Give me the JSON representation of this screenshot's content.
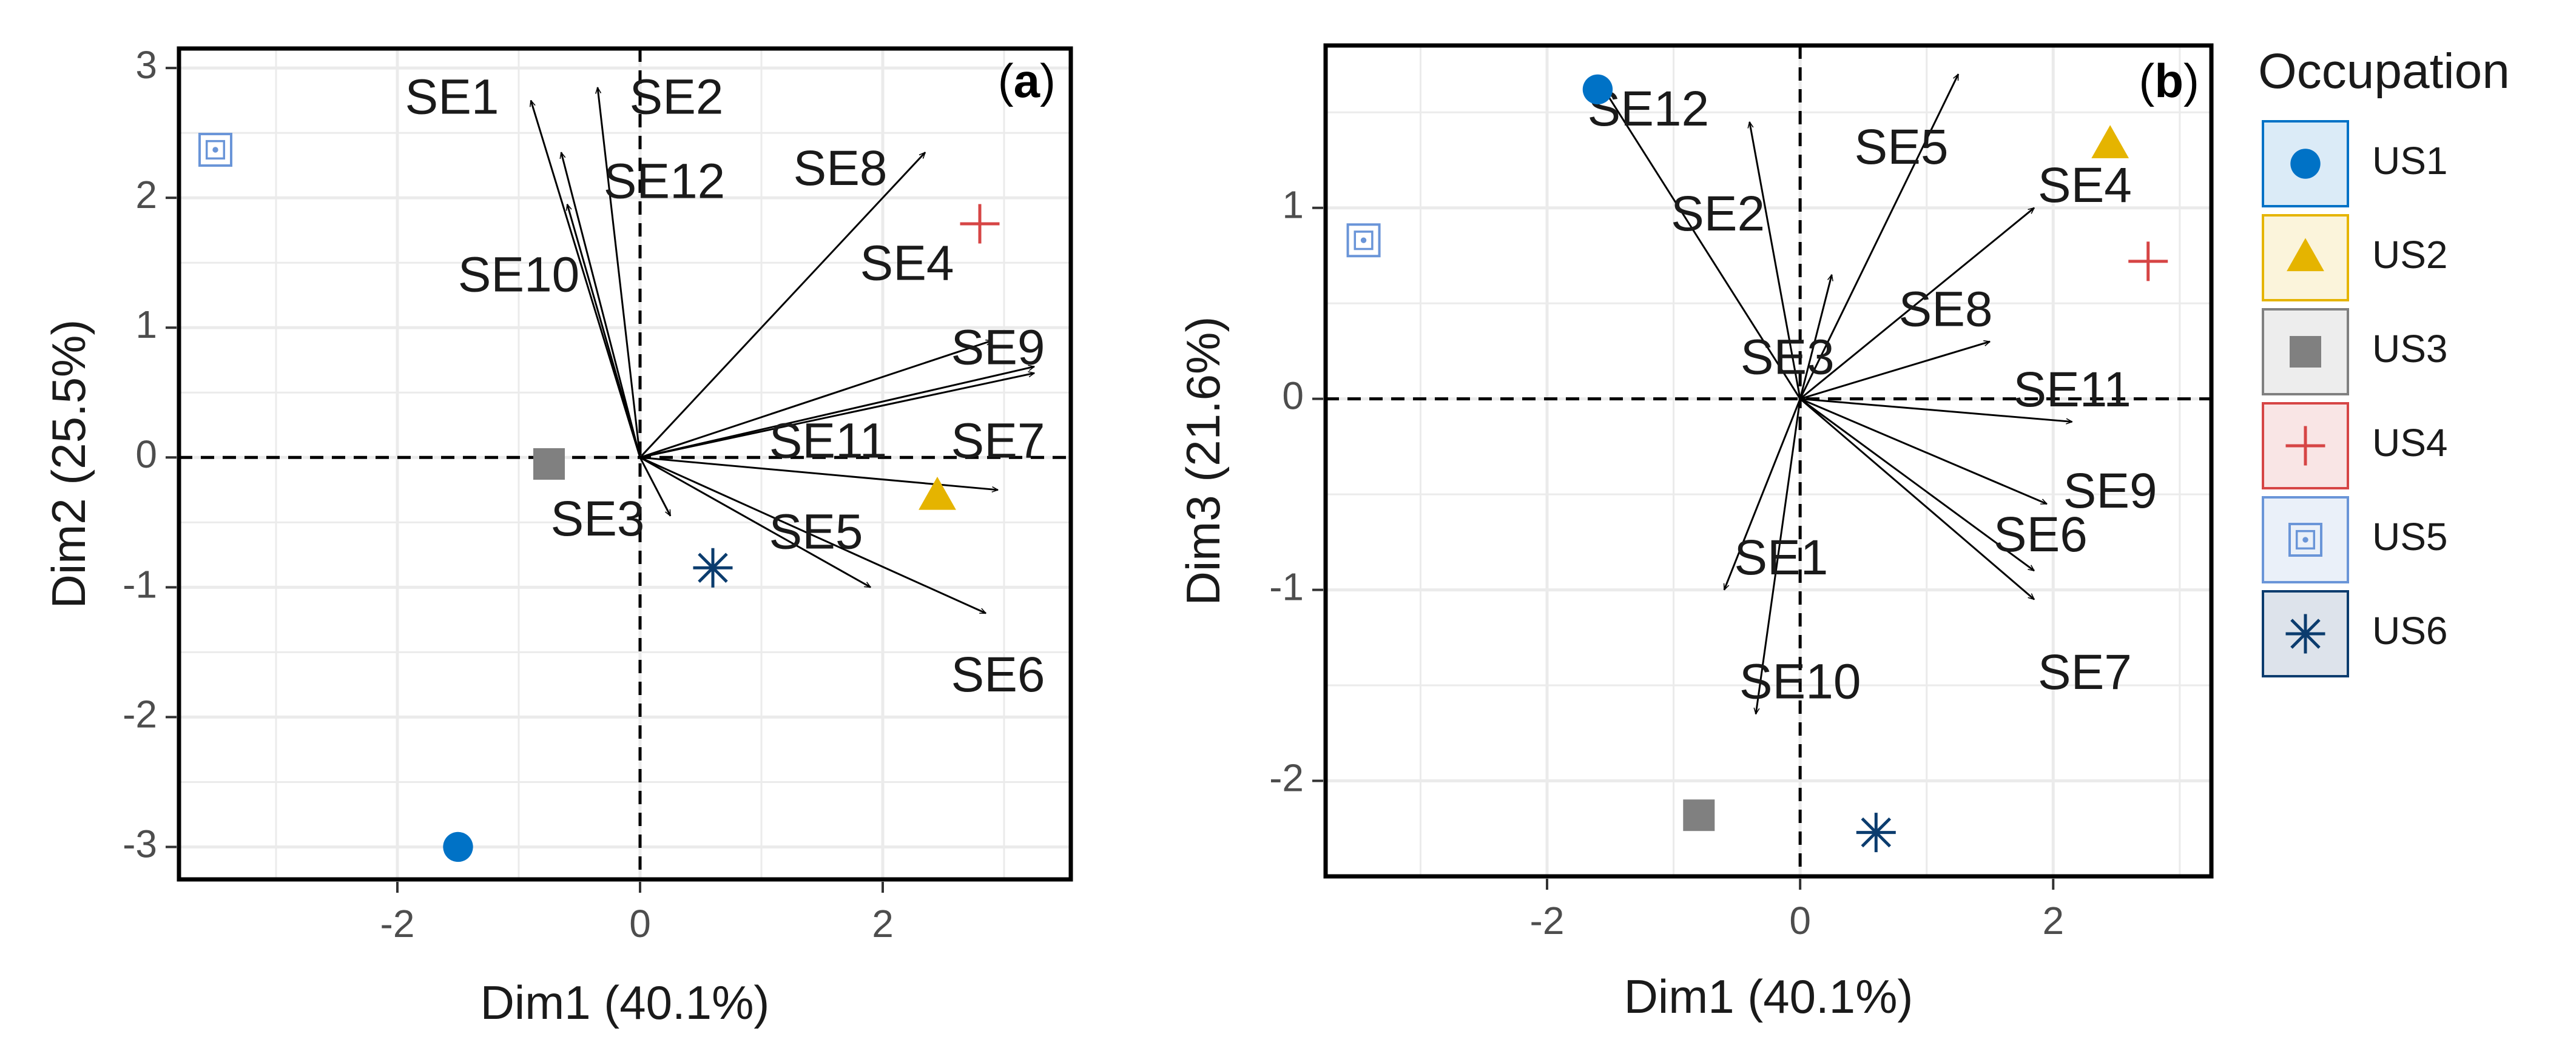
{
  "figure": {
    "legend": {
      "title": "Occupation",
      "placement": "right",
      "entries": [
        {
          "name": "US1",
          "shape": "circle",
          "color": "#0072C6"
        },
        {
          "name": "US2",
          "shape": "triangle",
          "color": "#E5B400"
        },
        {
          "name": "US3",
          "shape": "square",
          "color": "#808080"
        },
        {
          "name": "US4",
          "shape": "plus",
          "color": "#D64545"
        },
        {
          "name": "US5",
          "shape": "square-dot",
          "color": "#6A95D8"
        },
        {
          "name": "US6",
          "shape": "asterisk",
          "color": "#0B3C6E"
        }
      ]
    }
  },
  "chart_data": [
    {
      "type": "scatter",
      "panel_label": {
        "open": "(",
        "letter": "a",
        "close": ")"
      },
      "xlabel": "Dim1 (40.1%)",
      "ylabel": "Dim2 (25.5%)",
      "xlim": [
        -3.8,
        3.55
      ],
      "ylim": [
        -3.25,
        3.15
      ],
      "xticks": [
        -2,
        0,
        2
      ],
      "yticks": [
        -3,
        -2,
        -1,
        0,
        1,
        2,
        3
      ],
      "grid": true,
      "reference_lines": {
        "x": 0,
        "y": 0,
        "style": "dashed"
      },
      "individuals": [
        {
          "name": "US1",
          "x": -1.5,
          "y": -3.0
        },
        {
          "name": "US2",
          "x": 2.45,
          "y": -0.3
        },
        {
          "name": "US3",
          "x": -0.75,
          "y": -0.05
        },
        {
          "name": "US4",
          "x": 2.8,
          "y": 1.8
        },
        {
          "name": "US5",
          "x": -3.5,
          "y": 2.37
        },
        {
          "name": "US6",
          "x": 0.6,
          "y": -0.85
        }
      ],
      "variables": [
        {
          "name": "SE1",
          "x": -0.9,
          "y": 2.75,
          "label_x": -1.55,
          "label_y": 2.75
        },
        {
          "name": "SE2",
          "x": -0.35,
          "y": 2.85,
          "label_x": 0.3,
          "label_y": 2.75
        },
        {
          "name": "SE12",
          "x": -0.65,
          "y": 2.35,
          "label_x": 0.2,
          "label_y": 2.1
        },
        {
          "name": "SE10",
          "x": -0.6,
          "y": 1.95,
          "label_x": -1.0,
          "label_y": 1.38
        },
        {
          "name": "SE8",
          "x": 2.35,
          "y": 2.35,
          "label_x": 1.65,
          "label_y": 2.2
        },
        {
          "name": "SE4",
          "x": 2.9,
          "y": 0.9,
          "label_x": 2.2,
          "label_y": 1.47
        },
        {
          "name": "SE9",
          "x": 3.25,
          "y": 0.65,
          "label_x": 2.95,
          "label_y": 0.82
        },
        {
          "name": "SE11",
          "x": 3.25,
          "y": 0.7,
          "label_x": 1.55,
          "label_y": 0.1
        },
        {
          "name": "SE7",
          "x": 2.95,
          "y": -0.25,
          "label_x": 2.95,
          "label_y": 0.1
        },
        {
          "name": "SE3",
          "x": 0.25,
          "y": -0.45,
          "label_x": -0.35,
          "label_y": -0.5
        },
        {
          "name": "SE5",
          "x": 1.9,
          "y": -1.0,
          "label_x": 1.45,
          "label_y": -0.6
        },
        {
          "name": "SE6",
          "x": 2.85,
          "y": -1.2,
          "label_x": 2.95,
          "label_y": -1.7
        }
      ]
    },
    {
      "type": "scatter",
      "panel_label": {
        "open": "(",
        "letter": "b",
        "close": ")"
      },
      "xlabel": "Dim1 (40.1%)",
      "ylabel": "Dim3 (21.6%)",
      "xlim": [
        -3.75,
        3.25
      ],
      "ylim": [
        -2.5,
        1.85
      ],
      "xticks": [
        -2,
        0,
        2
      ],
      "yticks": [
        -2,
        -1,
        0,
        1
      ],
      "grid": true,
      "reference_lines": {
        "x": 0,
        "y": 0,
        "style": "dashed"
      },
      "individuals": [
        {
          "name": "US1",
          "x": -1.6,
          "y": 1.62
        },
        {
          "name": "US2",
          "x": 2.45,
          "y": 1.33
        },
        {
          "name": "US3",
          "x": -0.8,
          "y": -2.18
        },
        {
          "name": "US4",
          "x": 2.75,
          "y": 0.72
        },
        {
          "name": "US5",
          "x": -3.45,
          "y": 0.83
        },
        {
          "name": "US6",
          "x": 0.6,
          "y": -2.27
        }
      ],
      "variables": [
        {
          "name": "SE12",
          "x": -1.55,
          "y": 1.62,
          "label_x": -1.2,
          "label_y": 1.5
        },
        {
          "name": "SE5",
          "x": 1.25,
          "y": 1.7,
          "label_x": 0.8,
          "label_y": 1.3
        },
        {
          "name": "SE4",
          "x": 1.85,
          "y": 1.0,
          "label_x": 2.25,
          "label_y": 1.1
        },
        {
          "name": "SE2",
          "x": -0.4,
          "y": 1.45,
          "label_x": -0.65,
          "label_y": 0.95
        },
        {
          "name": "SE8",
          "x": 1.5,
          "y": 0.3,
          "label_x": 1.15,
          "label_y": 0.45
        },
        {
          "name": "SE3",
          "x": 0.25,
          "y": 0.65,
          "label_x": -0.1,
          "label_y": 0.2
        },
        {
          "name": "SE11",
          "x": 2.15,
          "y": -0.12,
          "label_x": 2.15,
          "label_y": 0.03
        },
        {
          "name": "SE9",
          "x": 1.95,
          "y": -0.55,
          "label_x": 2.45,
          "label_y": -0.5
        },
        {
          "name": "SE6",
          "x": 1.85,
          "y": -0.9,
          "label_x": 1.9,
          "label_y": -0.73
        },
        {
          "name": "SE1",
          "x": -0.6,
          "y": -1.0,
          "label_x": -0.15,
          "label_y": -0.85
        },
        {
          "name": "SE7",
          "x": 1.85,
          "y": -1.05,
          "label_x": 2.25,
          "label_y": -1.45
        },
        {
          "name": "SE10",
          "x": -0.35,
          "y": -1.65,
          "label_x": 0.0,
          "label_y": -1.5
        }
      ]
    }
  ]
}
